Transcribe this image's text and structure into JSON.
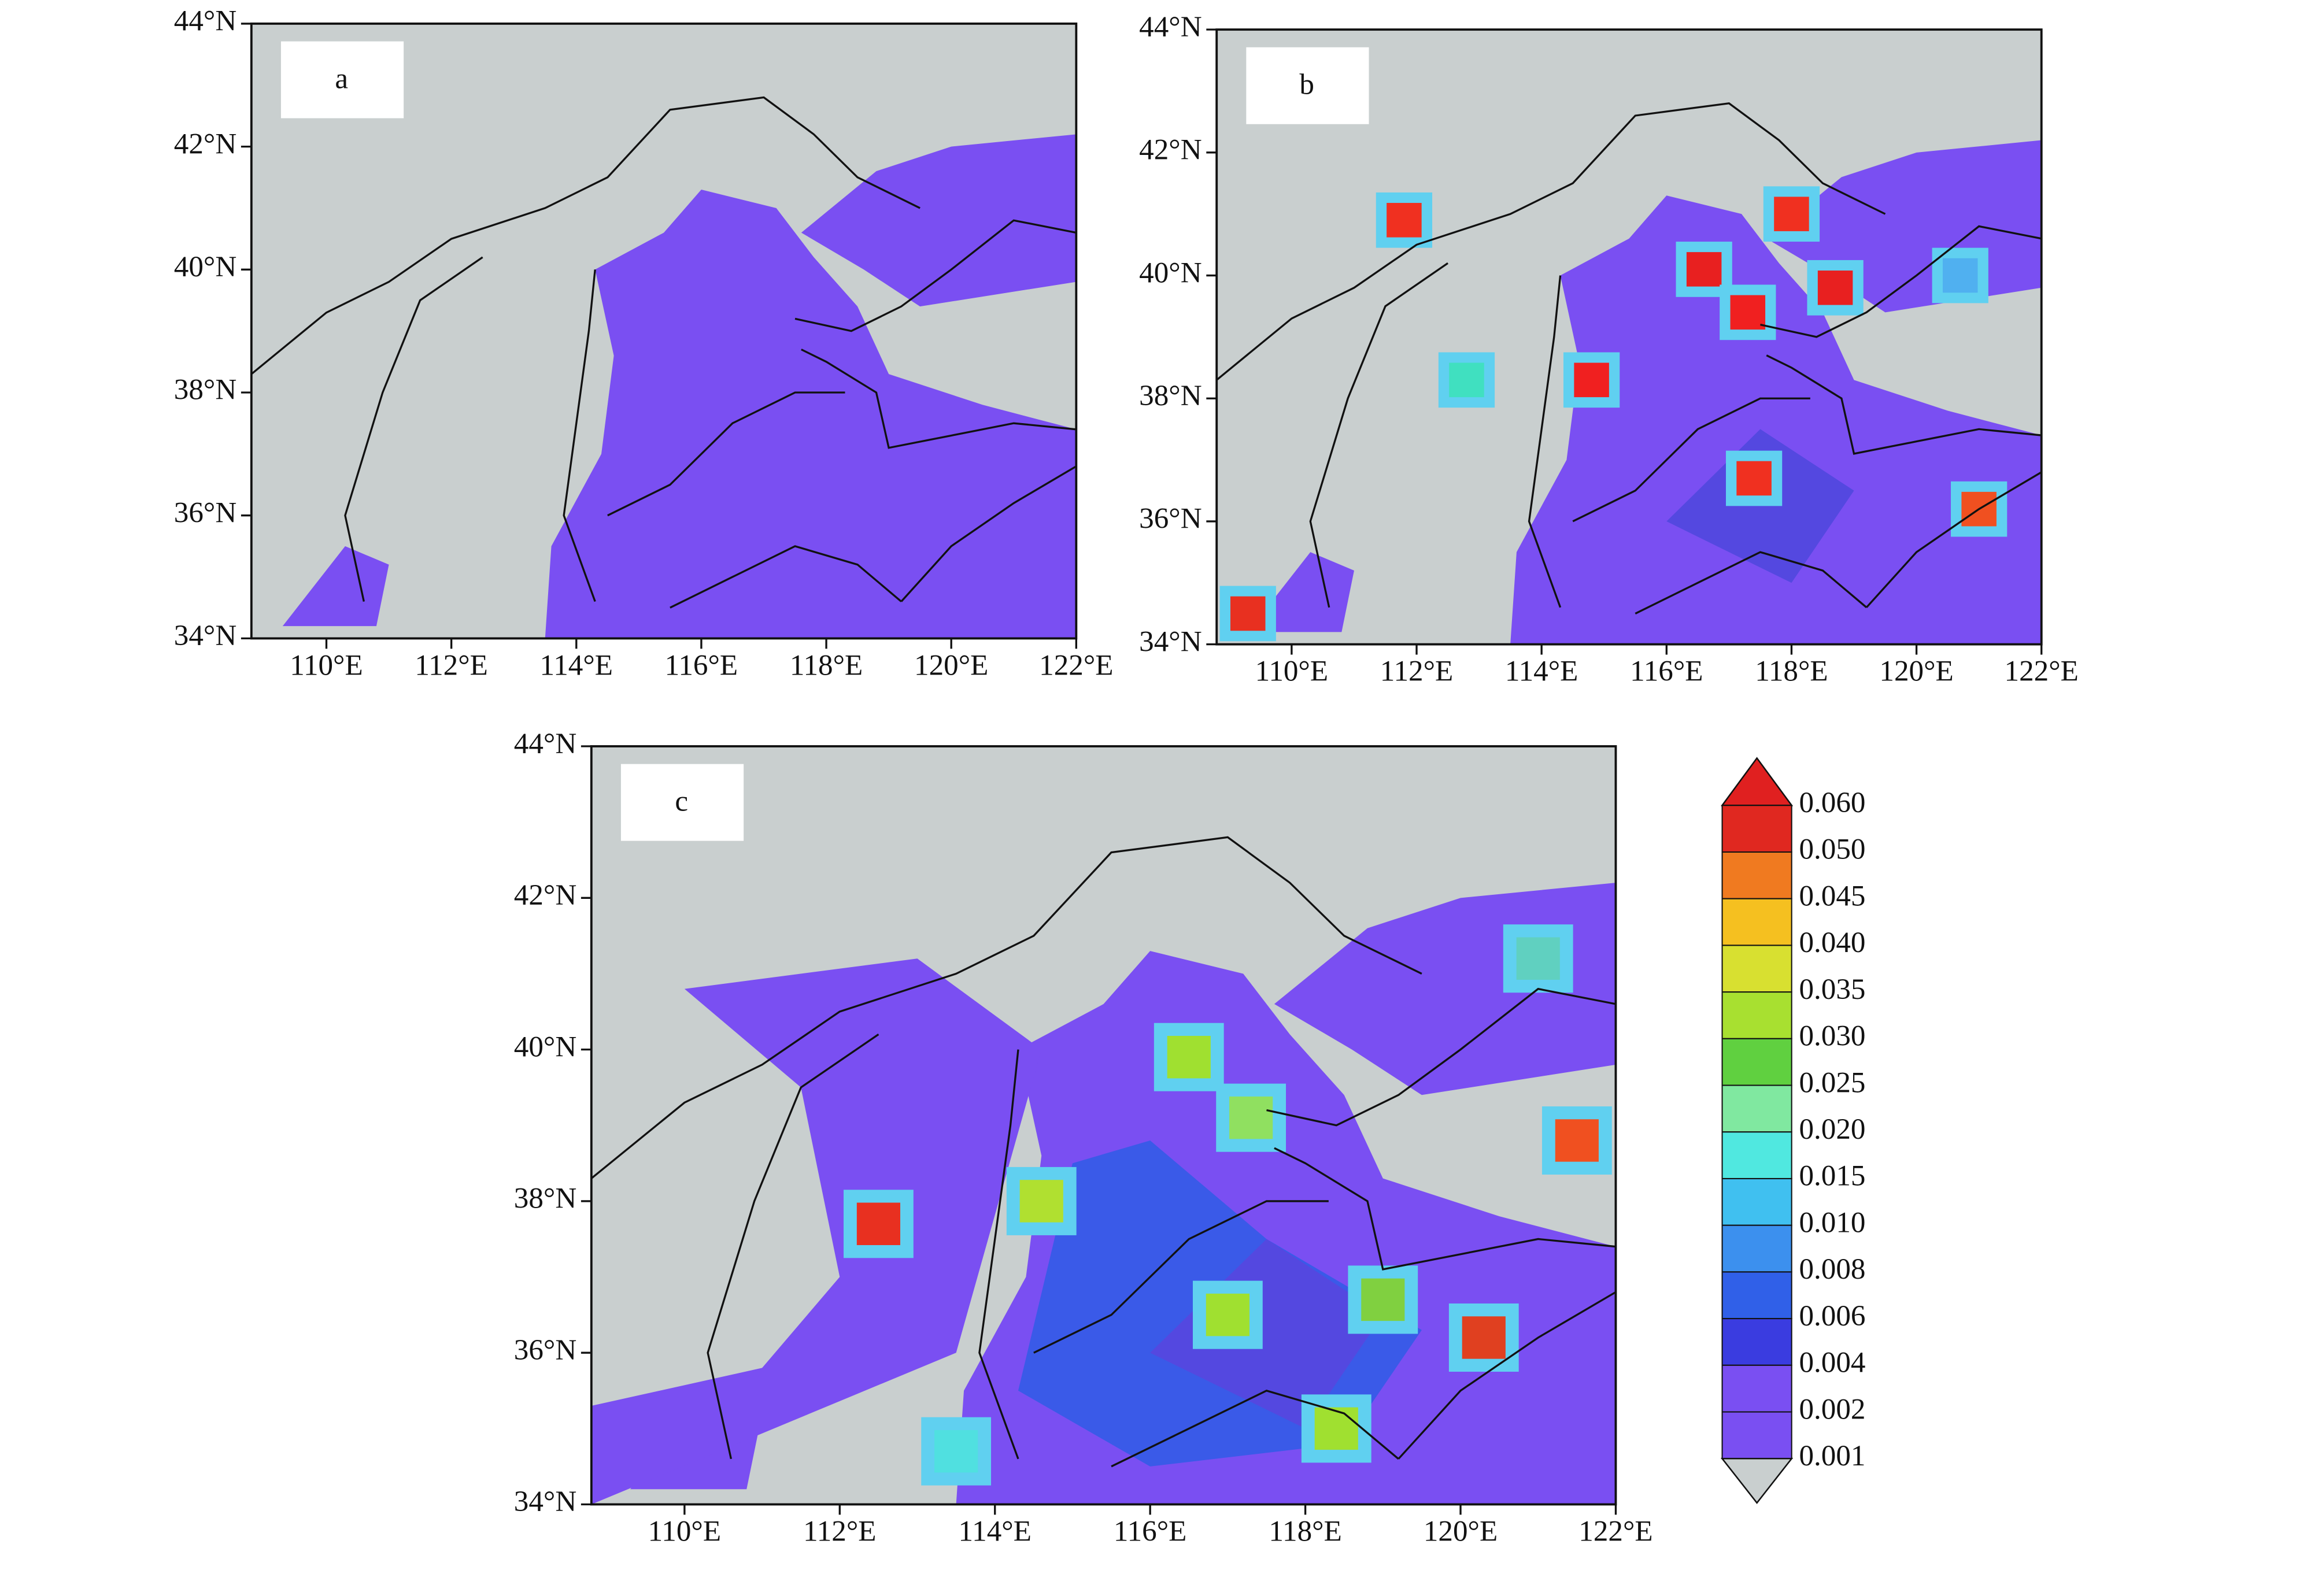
{
  "panels": [
    {
      "label": "a",
      "lat_labels": [
        "44°N",
        "42°N",
        "40°N",
        "38°N",
        "36°N",
        "34°N"
      ],
      "lon_labels": [
        "110°E",
        "112°E",
        "114°E",
        "116°E",
        "118°E",
        "120°E",
        "122°E"
      ]
    },
    {
      "label": "b",
      "lat_labels": [
        "44°N",
        "42°N",
        "40°N",
        "38°N",
        "36°N",
        "34°N"
      ],
      "lon_labels": [
        "110°E",
        "112°E",
        "114°E",
        "116°E",
        "118°E",
        "120°E",
        "122°E"
      ]
    },
    {
      "label": "c",
      "lat_labels": [
        "44°N",
        "42°N",
        "40°N",
        "38°N",
        "36°N",
        "34°N"
      ],
      "lon_labels": [
        "110°E",
        "112°E",
        "114°E",
        "116°E",
        "118°E",
        "120°E",
        "122°E"
      ]
    }
  ],
  "colorbar": {
    "labels": [
      "0.060",
      "0.050",
      "0.045",
      "0.040",
      "0.035",
      "0.030",
      "0.025",
      "0.020",
      "0.015",
      "0.010",
      "0.008",
      "0.006",
      "0.004",
      "0.002",
      "0.001"
    ]
  }
}
